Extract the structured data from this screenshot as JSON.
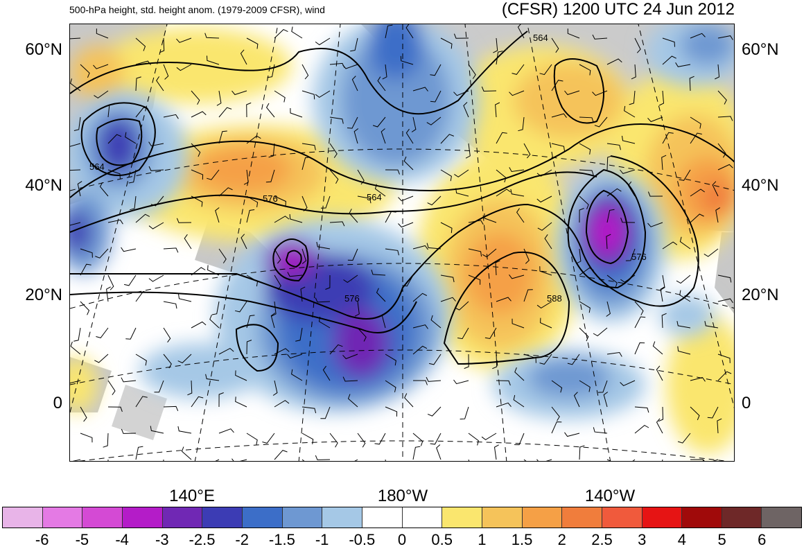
{
  "header": {
    "left_title": "500-hPa height, std. height anom. (1979-2009 CFSR), wind",
    "right_title": "(CFSR) 1200 UTC 24 Jun 2012"
  },
  "latitude_labels": [
    "60°N",
    "40°N",
    "20°N",
    "0"
  ],
  "longitude_labels": [
    "140°E",
    "180°W",
    "140°W"
  ],
  "contour_labels": [
    "564",
    "564",
    "564",
    "576",
    "576",
    "576",
    "588"
  ],
  "colorbar": {
    "colors": [
      "#e8b4e8",
      "#e47ae4",
      "#d44ad4",
      "#b41cc8",
      "#7028b4",
      "#3c3cb4",
      "#3c6ec8",
      "#6e98d2",
      "#a5c8e6",
      "#ffffff",
      "#ffffff",
      "#fae66e",
      "#f5c35a",
      "#f5a046",
      "#f07d3c",
      "#f05a3c",
      "#e61414",
      "#a00a0a",
      "#6e2828",
      "#6e6464"
    ],
    "labels": [
      "-6",
      "-5",
      "-4",
      "-3",
      "-2.5",
      "-2",
      "-1.5",
      "-1",
      "-0.5",
      "0",
      "0.5",
      "1",
      "1.5",
      "2",
      "2.5",
      "3",
      "4",
      "5",
      "6"
    ]
  },
  "colors": {
    "land": "#c8c8c8",
    "contour": "#000000"
  }
}
